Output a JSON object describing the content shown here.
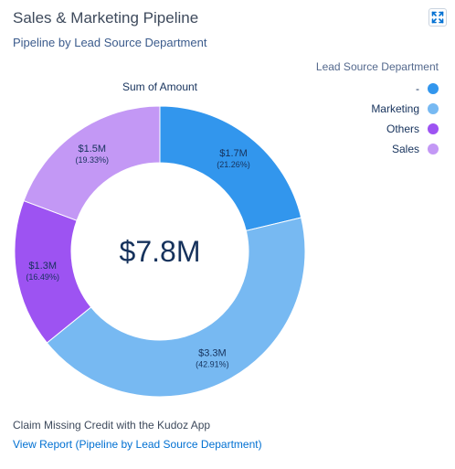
{
  "header": {
    "title": "Sales & Marketing Pipeline",
    "subtitle": "Pipeline by Lead Source Department",
    "expand_icon": "expand-icon"
  },
  "legend": {
    "title": "Lead Source Department",
    "items": [
      {
        "label": "-",
        "color": "#3296ed"
      },
      {
        "label": "Marketing",
        "color": "#77b9f2"
      },
      {
        "label": "Others",
        "color": "#9d53f2"
      },
      {
        "label": "Sales",
        "color": "#c398f5"
      }
    ]
  },
  "chart_data": {
    "type": "pie",
    "donut": true,
    "title": "Sum of Amount",
    "center_label": "$7.8M",
    "slices": [
      {
        "category": "-",
        "value": 1.7,
        "value_label": "$1.7M",
        "percent": 21.26,
        "percent_label": "(21.26%)",
        "color": "#3296ed"
      },
      {
        "category": "Marketing",
        "value": 3.3,
        "value_label": "$3.3M",
        "percent": 42.91,
        "percent_label": "(42.91%)",
        "color": "#77b9f2"
      },
      {
        "category": "Others",
        "value": 1.3,
        "value_label": "$1.3M",
        "percent": 16.49,
        "percent_label": "(16.49%)",
        "color": "#9d53f2"
      },
      {
        "category": "Sales",
        "value": 1.5,
        "value_label": "$1.5M",
        "percent": 19.33,
        "percent_label": "(19.33%)",
        "color": "#c398f5"
      }
    ],
    "legend_position": "top-right"
  },
  "footer": {
    "claim_text": "Claim Missing Credit with the Kudoz App",
    "report_link": "View Report (Pipeline by Lead Source Department)"
  }
}
